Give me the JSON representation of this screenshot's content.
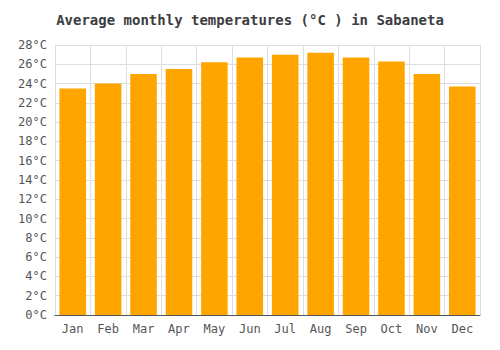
{
  "chart_data": {
    "type": "bar",
    "title": "Average monthly temperatures (°C ) in Sabaneta",
    "categories": [
      "Jan",
      "Feb",
      "Mar",
      "Apr",
      "May",
      "Jun",
      "Jul",
      "Aug",
      "Sep",
      "Oct",
      "Nov",
      "Dec"
    ],
    "values": [
      23.5,
      24.0,
      25.0,
      25.5,
      26.2,
      26.7,
      27.0,
      27.2,
      26.7,
      26.3,
      25.0,
      23.7
    ],
    "color": "#FFA500",
    "ylim": [
      0,
      28
    ],
    "yticks": [
      {
        "value": 0,
        "label": "0°C"
      },
      {
        "value": 2,
        "label": "2°C"
      },
      {
        "value": 4,
        "label": "4°C"
      },
      {
        "value": 6,
        "label": "6°C"
      },
      {
        "value": 8,
        "label": "8°C"
      },
      {
        "value": 10,
        "label": "10°C"
      },
      {
        "value": 12,
        "label": "12°C"
      },
      {
        "value": 14,
        "label": "14°C"
      },
      {
        "value": 16,
        "label": "16°C"
      },
      {
        "value": 18,
        "label": "18°C"
      },
      {
        "value": 20,
        "label": "20°C"
      },
      {
        "value": 22,
        "label": "22°C"
      },
      {
        "value": 24,
        "label": "24°C"
      },
      {
        "value": 26,
        "label": "26°C"
      },
      {
        "value": 28,
        "label": "28°C"
      }
    ],
    "grid": true
  }
}
